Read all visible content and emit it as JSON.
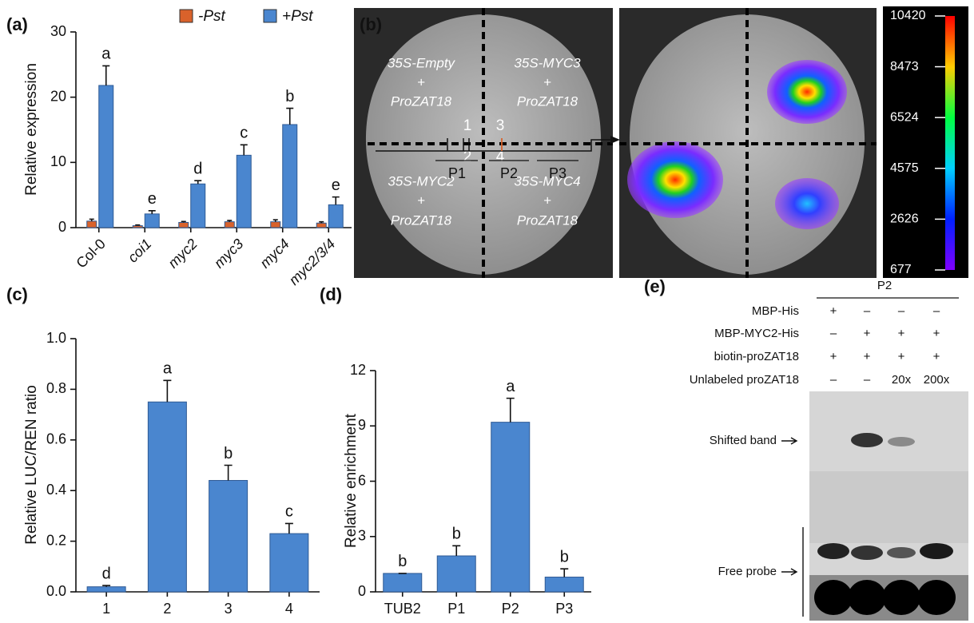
{
  "chart_data": [
    {
      "type": "bar",
      "panel_label": "(a)",
      "ylabel": "Relative expression",
      "categories": [
        "Col-0",
        "coi1",
        "myc2",
        "myc3",
        "myc4",
        "myc2/3/4"
      ],
      "series": [
        {
          "name": "-Pst",
          "color": "#d9622b",
          "values": [
            1.0,
            0.3,
            0.8,
            0.9,
            0.9,
            0.7
          ],
          "errors": [
            0.3,
            0.1,
            0.15,
            0.2,
            0.3,
            0.2
          ]
        },
        {
          "name": "+Pst",
          "color": "#4a86cf",
          "values": [
            21.8,
            2.1,
            6.7,
            11.1,
            15.8,
            3.5
          ],
          "errors": [
            3.0,
            0.5,
            0.5,
            1.6,
            2.5,
            1.2
          ],
          "letters": [
            "a",
            "e",
            "d",
            "c",
            "b",
            "e"
          ]
        }
      ],
      "ylim": [
        0,
        30
      ],
      "yticks": [
        0,
        10,
        20,
        30
      ]
    },
    {
      "type": "bar",
      "panel_label": "(c)",
      "ylabel": "Relative LUC/REN ratio",
      "categories": [
        "1",
        "2",
        "3",
        "4"
      ],
      "color": "#4a86cf",
      "values": [
        0.02,
        0.75,
        0.44,
        0.23
      ],
      "errors": [
        0.005,
        0.085,
        0.06,
        0.04
      ],
      "letters": [
        "d",
        "a",
        "b",
        "c"
      ],
      "ylim": [
        0,
        1
      ],
      "yticks": [
        {
          "value": 0,
          "label": "0.0"
        },
        {
          "value": 0.2,
          "label": "0.2"
        },
        {
          "value": 0.4,
          "label": "0.4"
        },
        {
          "value": 0.6,
          "label": "0.6"
        },
        {
          "value": 0.8,
          "label": "0.8"
        },
        {
          "value": 1,
          "label": "1.0"
        }
      ]
    },
    {
      "type": "bar",
      "panel_label": "(d)",
      "ylabel": "Relative enrichment",
      "categories": [
        "TUB2",
        "P1",
        "P2",
        "P3"
      ],
      "color": "#4a86cf",
      "values": [
        1.0,
        1.95,
        9.2,
        0.8
      ],
      "errors": [
        0,
        0.55,
        1.3,
        0.45
      ],
      "letters": [
        "b",
        "b",
        "a",
        "b"
      ],
      "ylim": [
        0,
        12
      ],
      "yticks": [
        0,
        3,
        6,
        9,
        12
      ],
      "regions": [
        "P1",
        "P2",
        "P3"
      ]
    }
  ],
  "panel_b": {
    "panel_label": "(b)",
    "quadrants": [
      {
        "construct": "35S-Empty",
        "plus": "+",
        "promoter": "ProZAT18",
        "number": "1"
      },
      {
        "construct": "35S-MYC2",
        "plus": "+",
        "promoter": "ProZAT18",
        "number": "2"
      },
      {
        "construct": "35S-MYC3",
        "plus": "+",
        "promoter": "ProZAT18",
        "number": "3"
      },
      {
        "construct": "35S-MYC4",
        "plus": "+",
        "promoter": "ProZAT18",
        "number": "4"
      }
    ],
    "colorbar": {
      "lim": [
        677,
        10420
      ],
      "ticks": [
        10420,
        8473,
        6524,
        4575,
        2626,
        677
      ]
    }
  },
  "panel_e": {
    "panel_label": "(e)",
    "header": "P2",
    "rows": [
      {
        "label": "MBP-His",
        "lanes": [
          "+",
          "–",
          "–",
          "–"
        ]
      },
      {
        "label": "MBP-MYC2-His",
        "lanes": [
          "–",
          "+",
          "+",
          "+"
        ]
      },
      {
        "label": "biotin-proZAT18",
        "lanes": [
          "+",
          "+",
          "+",
          "+"
        ]
      },
      {
        "label": "Unlabeled proZAT18",
        "lanes": [
          "–",
          "–",
          "20x",
          "200x"
        ]
      }
    ],
    "bands": [
      "Shifted band",
      "Free probe"
    ]
  }
}
